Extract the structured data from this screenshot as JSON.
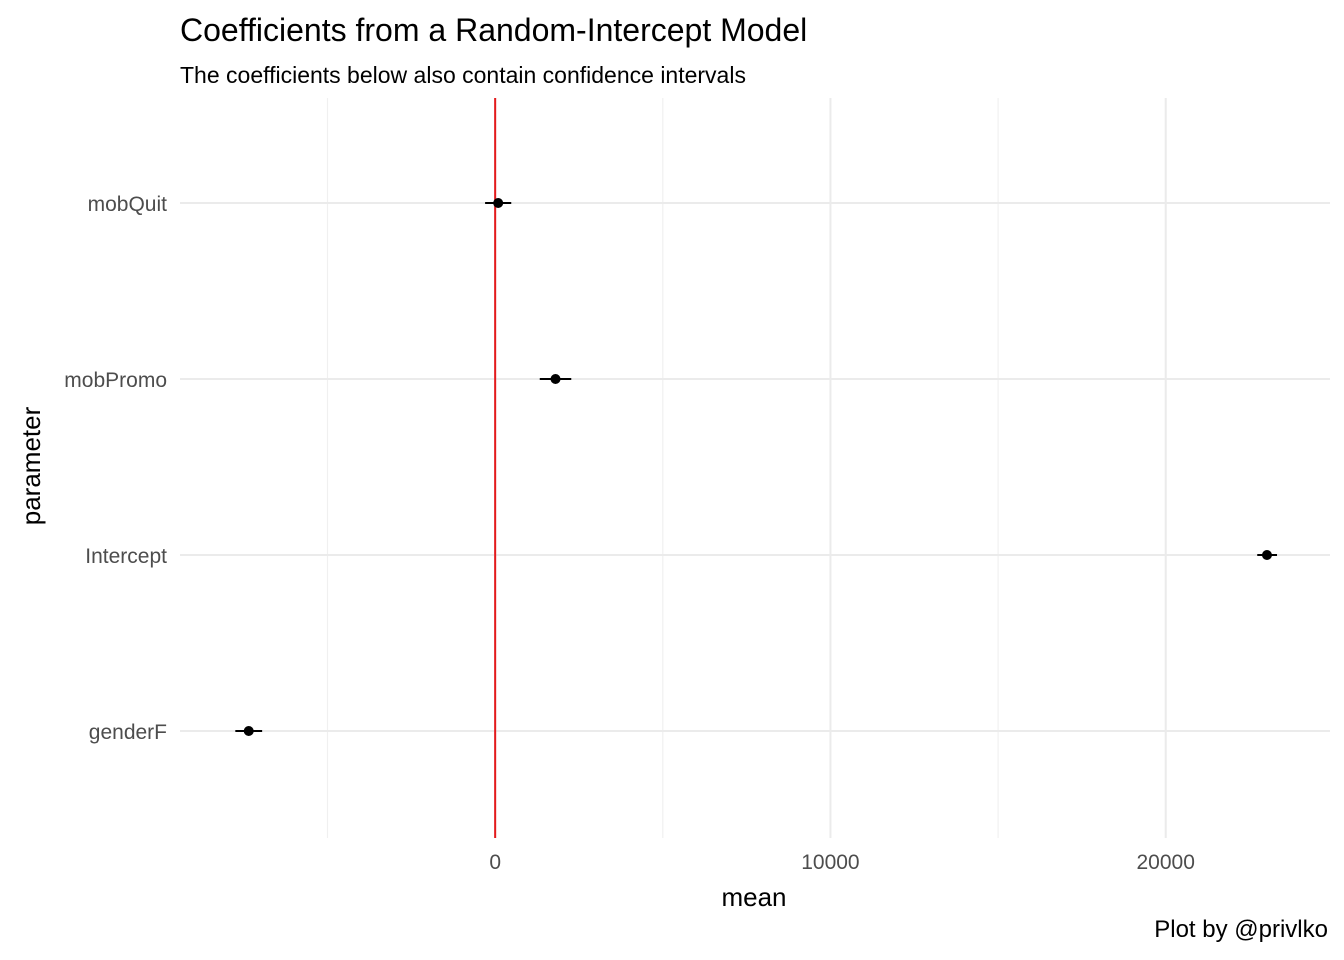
{
  "chart_data": {
    "type": "scatter",
    "title": "Coefficients from a Random-Intercept Model",
    "subtitle": "The coefficients below also contain confidence intervals",
    "caption": "Plot by @privlko",
    "xlabel": "mean",
    "ylabel": "parameter",
    "categories": [
      "genderF",
      "Intercept",
      "mobPromo",
      "mobQuit"
    ],
    "xlim": [
      -9400,
      24900
    ],
    "x_ticks": [
      0,
      10000,
      20000
    ],
    "x_tick_labels": [
      "0",
      "10000",
      "20000"
    ],
    "x_minor_ticks": [
      -5000,
      5000,
      15000
    ],
    "reference_line": {
      "x": 0,
      "color": "#e41a1c"
    },
    "points": [
      {
        "parameter": "genderF",
        "mean": -7350,
        "lower": -7750,
        "upper": -6950
      },
      {
        "parameter": "Intercept",
        "mean": 23020,
        "lower": 22730,
        "upper": 23320
      },
      {
        "parameter": "mobPromo",
        "mean": 1800,
        "lower": 1330,
        "upper": 2270
      },
      {
        "parameter": "mobQuit",
        "mean": 90,
        "lower": -300,
        "upper": 480
      }
    ],
    "grid": true,
    "point_color": "#000000"
  }
}
